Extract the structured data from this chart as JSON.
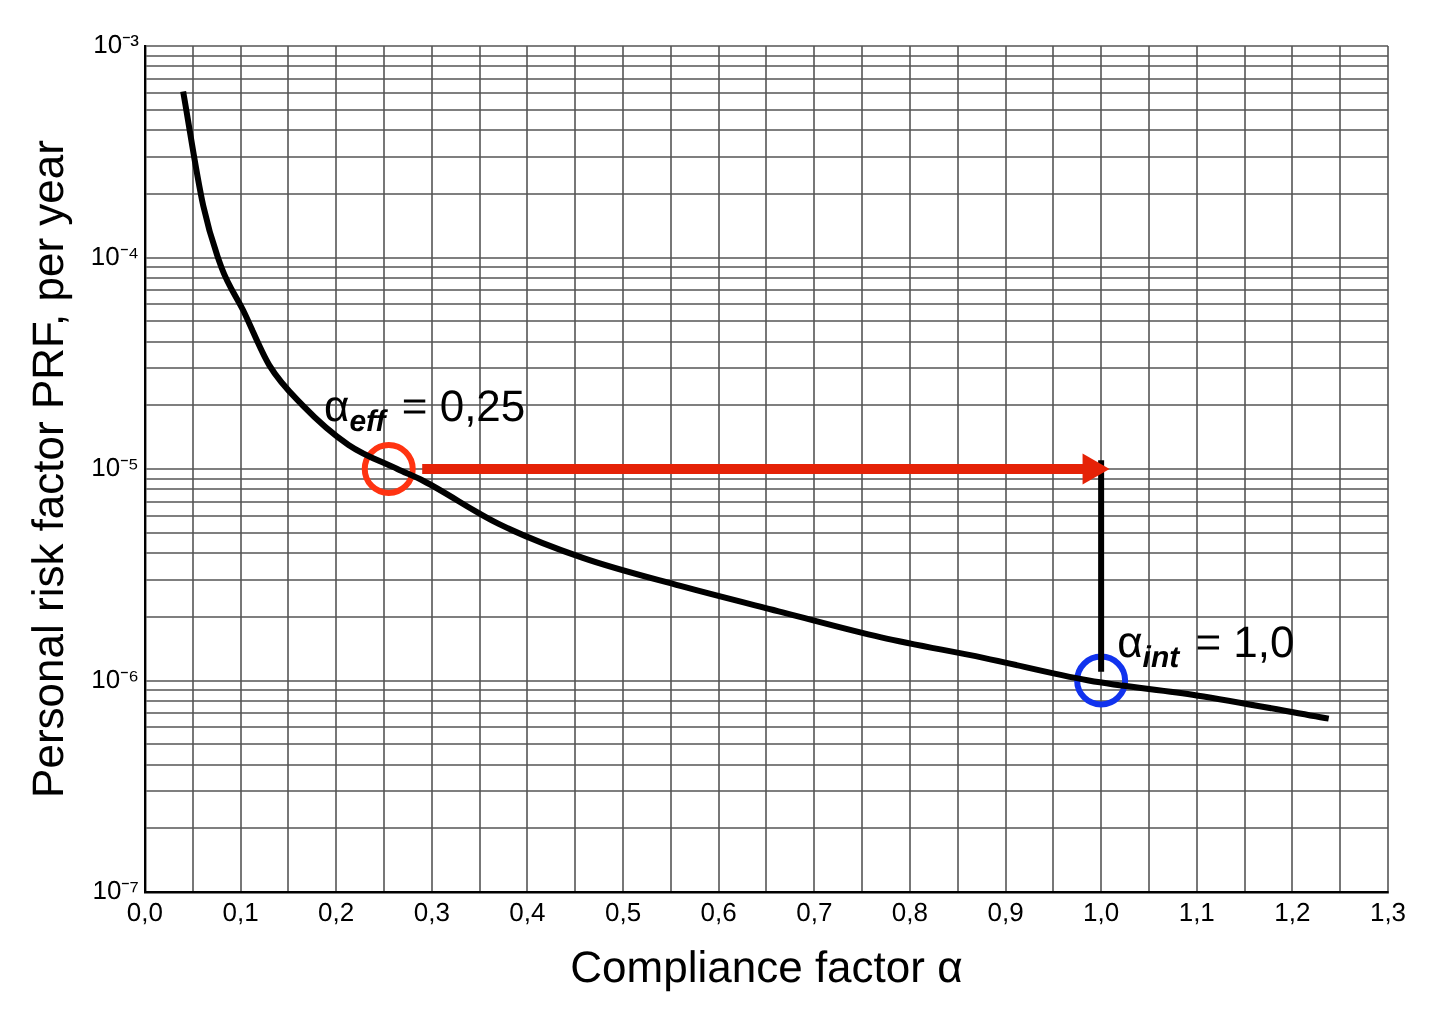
{
  "chart_data": {
    "type": "line",
    "xlabel": "Compliance factor α",
    "ylabel": "Personal risk factor PRF, per year",
    "log": "y",
    "grid": true,
    "legend": false,
    "xlim": [
      0,
      1.3
    ],
    "ylim": [
      1e-07,
      0.001
    ],
    "xticks": [
      {
        "value": 0,
        "label": "0,0"
      },
      {
        "value": 0.05,
        "label": null
      },
      {
        "value": 0.1,
        "label": "0,1"
      },
      {
        "value": 0.15,
        "label": null
      },
      {
        "value": 0.2,
        "label": "0,2"
      },
      {
        "value": 0.25,
        "label": null
      },
      {
        "value": 0.3,
        "label": "0,3"
      },
      {
        "value": 0.35,
        "label": null
      },
      {
        "value": 0.4,
        "label": "0,4"
      },
      {
        "value": 0.45,
        "label": null
      },
      {
        "value": 0.5,
        "label": "0,5"
      },
      {
        "value": 0.55,
        "label": null
      },
      {
        "value": 0.6,
        "label": "0,6"
      },
      {
        "value": 0.65,
        "label": null
      },
      {
        "value": 0.7,
        "label": "0,7"
      },
      {
        "value": 0.75,
        "label": null
      },
      {
        "value": 0.8,
        "label": "0,8"
      },
      {
        "value": 0.85,
        "label": null
      },
      {
        "value": 0.9,
        "label": "0,9"
      },
      {
        "value": 0.95,
        "label": null
      },
      {
        "value": 1.0,
        "label": "1,0"
      },
      {
        "value": 1.05,
        "label": null
      },
      {
        "value": 1.1,
        "label": "1,1"
      },
      {
        "value": 1.15,
        "label": null
      },
      {
        "value": 1.2,
        "label": "1,2"
      },
      {
        "value": 1.25,
        "label": null
      },
      {
        "value": 1.3,
        "label": "1,3"
      }
    ],
    "yticks": [
      {
        "value": 1e-07,
        "label": "10⁻⁷"
      },
      {
        "value": 2e-07,
        "label": null
      },
      {
        "value": 3e-07,
        "label": null
      },
      {
        "value": 4e-07,
        "label": null
      },
      {
        "value": 5e-07,
        "label": null
      },
      {
        "value": 6e-07,
        "label": null
      },
      {
        "value": 7e-07,
        "label": null
      },
      {
        "value": 8e-07,
        "label": null
      },
      {
        "value": 9e-07,
        "label": null
      },
      {
        "value": 1e-06,
        "label": "10⁻⁶"
      },
      {
        "value": 2e-06,
        "label": null
      },
      {
        "value": 3e-06,
        "label": null
      },
      {
        "value": 4e-06,
        "label": null
      },
      {
        "value": 5e-06,
        "label": null
      },
      {
        "value": 6e-06,
        "label": null
      },
      {
        "value": 7e-06,
        "label": null
      },
      {
        "value": 8e-06,
        "label": null
      },
      {
        "value": 9e-06,
        "label": null
      },
      {
        "value": 1e-05,
        "label": "10⁻⁵"
      },
      {
        "value": 2e-05,
        "label": null
      },
      {
        "value": 3e-05,
        "label": null
      },
      {
        "value": 4e-05,
        "label": null
      },
      {
        "value": 5e-05,
        "label": null
      },
      {
        "value": 6e-05,
        "label": null
      },
      {
        "value": 7e-05,
        "label": null
      },
      {
        "value": 8e-05,
        "label": null
      },
      {
        "value": 9e-05,
        "label": null
      },
      {
        "value": 0.0001,
        "label": "10⁻⁴"
      },
      {
        "value": 0.0002,
        "label": null
      },
      {
        "value": 0.0003,
        "label": null
      },
      {
        "value": 0.0004,
        "label": null
      },
      {
        "value": 0.0005,
        "label": null
      },
      {
        "value": 0.0006,
        "label": null
      },
      {
        "value": 0.0007,
        "label": null
      },
      {
        "value": 0.0008,
        "label": null
      },
      {
        "value": 0.0009,
        "label": null
      },
      {
        "value": 0.001,
        "label": "10⁻³"
      }
    ],
    "series": [
      {
        "type": "line",
        "color": "#000000",
        "marker": "none",
        "x": [
          0.04,
          0.061,
          0.08,
          0.103,
          0.13,
          0.165,
          0.213,
          0.264,
          0.291,
          0.37,
          0.458,
          0.56,
          0.667,
          0.77,
          0.877,
          0.987,
          1.1,
          1.238
        ],
        "values": [
          0.00061,
          0.000176,
          9e-05,
          5.6e-05,
          3.1e-05,
          2e-05,
          1.3e-05,
          1e-05,
          8.8e-06,
          5.5e-06,
          3.8e-06,
          2.8e-06,
          2.1e-06,
          1.6e-06,
          1.28e-06,
          1e-06,
          8.5e-07,
          6.6e-07
        ]
      },
      {
        "type": "line",
        "color": "#e52207",
        "marker": "triangle",
        "x": [
          0.29,
          0.99
        ],
        "values": [
          1e-05,
          1e-05
        ]
      },
      {
        "type": "line",
        "color": "#000000",
        "marker": "none",
        "x": [
          1.0,
          1.0
        ],
        "values": [
          1.1e-06,
          1.1e-05
        ]
      },
      {
        "type": "scatter",
        "color": "#ff3311",
        "marker": "circle",
        "x": [
          0.255
        ],
        "values": [
          1e-05
        ]
      },
      {
        "type": "scatter",
        "color": "#1133ee",
        "marker": "circle",
        "x": [
          1.0
        ],
        "values": [
          1e-06
        ]
      }
    ],
    "annotations": [
      {
        "text": "α$_{eff}$ = 0,25",
        "x": 0.25,
        "y": 1e-05
      },
      {
        "text": "α$_{int}$ = 1,0",
        "x": 1.0,
        "y": 1e-06
      }
    ]
  }
}
